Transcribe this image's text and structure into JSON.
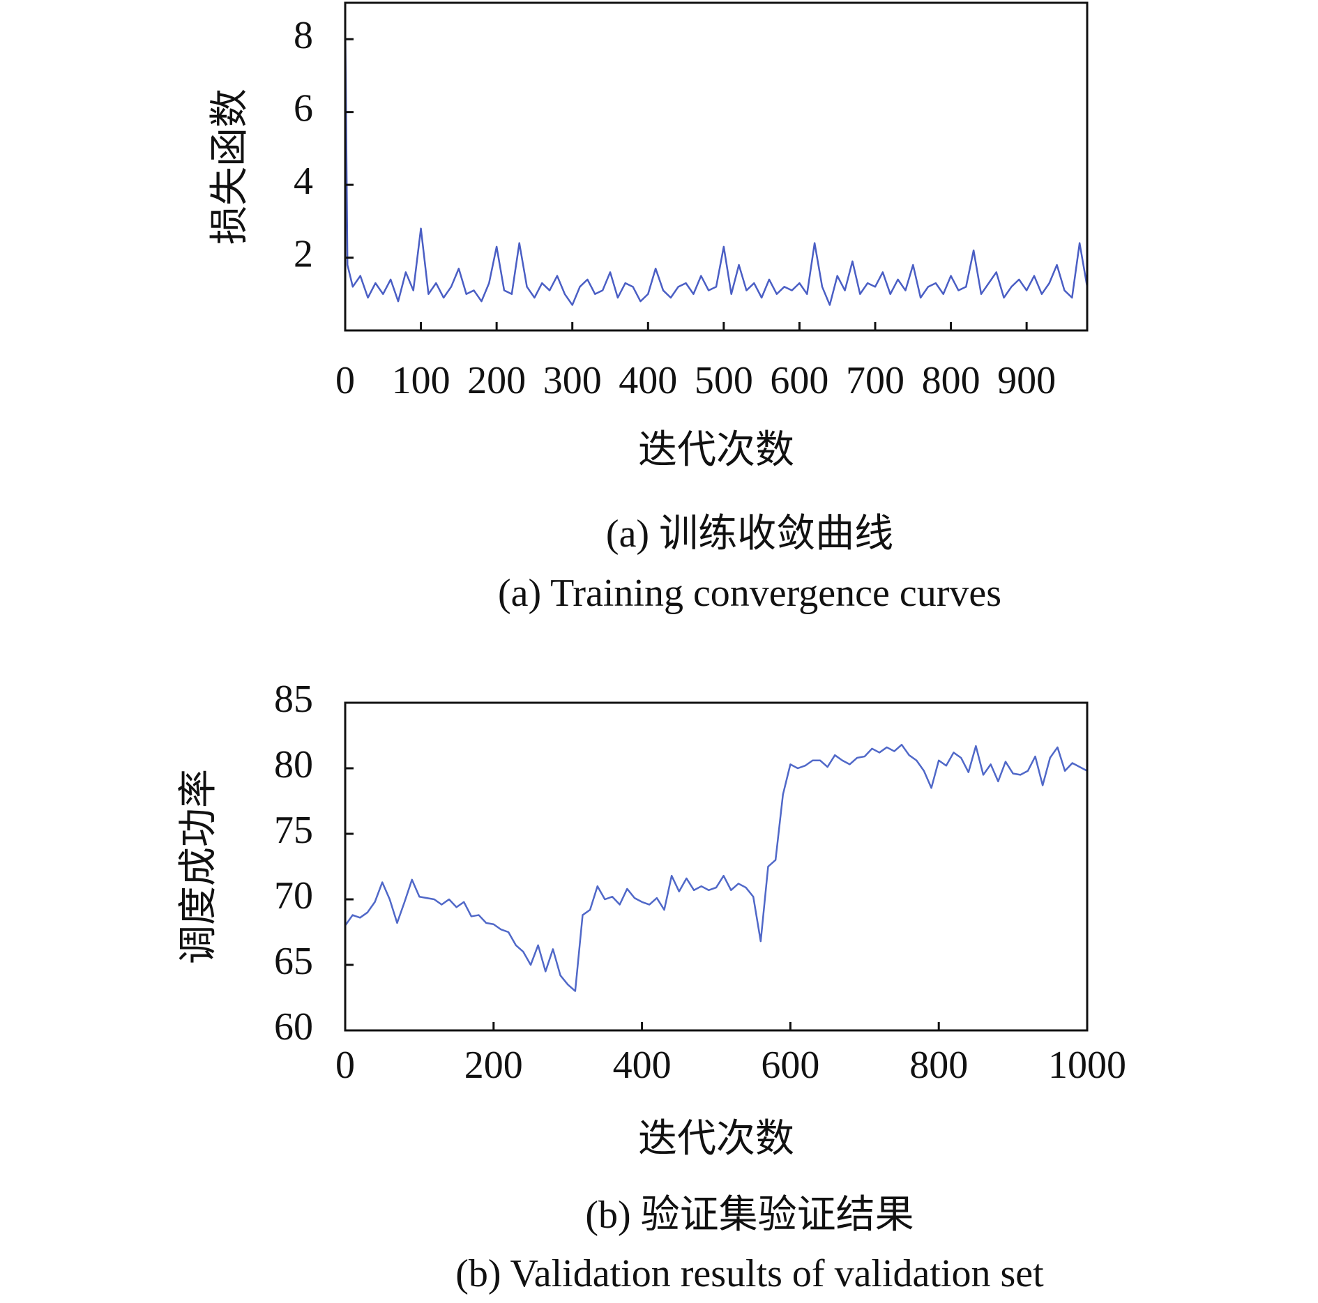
{
  "chart_data": [
    {
      "type": "line",
      "title": "(a) 训练收敛曲线",
      "subtitle": "(a) Training convergence curves",
      "x_label": "迭代次数",
      "y_label": "损失函数",
      "xlim": [
        0,
        980
      ],
      "ylim": [
        0,
        9
      ],
      "xticks": [
        0,
        100,
        200,
        300,
        400,
        500,
        600,
        700,
        800,
        900
      ],
      "yticks": [
        2,
        4,
        6,
        8
      ],
      "color": "#4a5ec4",
      "x": [
        0,
        3,
        10,
        20,
        30,
        40,
        50,
        60,
        70,
        80,
        90,
        100,
        110,
        120,
        130,
        140,
        150,
        160,
        170,
        180,
        190,
        200,
        210,
        220,
        230,
        240,
        250,
        260,
        270,
        280,
        290,
        300,
        310,
        320,
        330,
        340,
        350,
        360,
        370,
        380,
        390,
        400,
        410,
        420,
        430,
        440,
        450,
        460,
        470,
        480,
        490,
        500,
        510,
        520,
        530,
        540,
        550,
        560,
        570,
        580,
        590,
        600,
        610,
        620,
        630,
        640,
        650,
        660,
        670,
        680,
        690,
        700,
        710,
        720,
        730,
        740,
        750,
        760,
        770,
        780,
        790,
        800,
        810,
        820,
        830,
        840,
        850,
        860,
        870,
        880,
        890,
        900,
        910,
        920,
        930,
        940,
        950,
        960,
        970,
        980
      ],
      "values": [
        8.6,
        1.8,
        1.2,
        1.5,
        0.9,
        1.3,
        1.0,
        1.4,
        0.8,
        1.6,
        1.1,
        2.8,
        1.0,
        1.3,
        0.9,
        1.2,
        1.7,
        1.0,
        1.1,
        0.8,
        1.3,
        2.3,
        1.1,
        1.0,
        2.4,
        1.2,
        0.9,
        1.3,
        1.1,
        1.5,
        1.0,
        0.7,
        1.2,
        1.4,
        1.0,
        1.1,
        1.6,
        0.9,
        1.3,
        1.2,
        0.8,
        1.0,
        1.7,
        1.1,
        0.9,
        1.2,
        1.3,
        1.0,
        1.5,
        1.1,
        1.2,
        2.3,
        1.0,
        1.8,
        1.1,
        1.3,
        0.9,
        1.4,
        1.0,
        1.2,
        1.1,
        1.3,
        1.0,
        2.4,
        1.2,
        0.7,
        1.5,
        1.1,
        1.9,
        1.0,
        1.3,
        1.2,
        1.6,
        1.0,
        1.4,
        1.1,
        1.8,
        0.9,
        1.2,
        1.3,
        1.0,
        1.5,
        1.1,
        1.2,
        2.2,
        1.0,
        1.3,
        1.6,
        0.9,
        1.2,
        1.4,
        1.1,
        1.5,
        1.0,
        1.3,
        1.8,
        1.1,
        0.9,
        2.4,
        1.2
      ]
    },
    {
      "type": "line",
      "title": "(b) 验证集验证结果",
      "subtitle": "(b) Validation results of validation set",
      "x_label": "迭代次数",
      "y_label": "调度成功率",
      "xlim": [
        0,
        1000
      ],
      "ylim": [
        60,
        85
      ],
      "xticks": [
        0,
        200,
        400,
        600,
        800,
        1000
      ],
      "yticks": [
        60,
        65,
        70,
        75,
        80,
        85
      ],
      "color": "#5068c8",
      "x": [
        0,
        10,
        20,
        30,
        40,
        50,
        60,
        70,
        80,
        90,
        100,
        110,
        120,
        130,
        140,
        150,
        160,
        170,
        180,
        190,
        200,
        210,
        220,
        230,
        240,
        250,
        260,
        270,
        280,
        290,
        300,
        310,
        320,
        330,
        340,
        350,
        360,
        370,
        380,
        390,
        400,
        410,
        420,
        430,
        440,
        450,
        460,
        470,
        480,
        490,
        500,
        510,
        520,
        530,
        540,
        550,
        560,
        570,
        580,
        590,
        600,
        610,
        620,
        630,
        640,
        650,
        660,
        670,
        680,
        690,
        700,
        710,
        720,
        730,
        740,
        750,
        760,
        770,
        780,
        790,
        800,
        810,
        820,
        830,
        840,
        850,
        860,
        870,
        880,
        890,
        900,
        910,
        920,
        930,
        940,
        950,
        960,
        970,
        980,
        990,
        1000
      ],
      "values": [
        68,
        68.8,
        68.6,
        69,
        69.8,
        71.3,
        70,
        68.2,
        69.8,
        71.5,
        70.2,
        70.1,
        70,
        69.6,
        70,
        69.4,
        69.8,
        68.7,
        68.8,
        68.2,
        68.1,
        67.7,
        67.5,
        66.5,
        66,
        65,
        66.5,
        64.5,
        66.2,
        64.2,
        63.5,
        63,
        68.8,
        69.2,
        71,
        70,
        70.2,
        69.6,
        70.8,
        70.1,
        69.8,
        69.6,
        70.1,
        69.2,
        71.8,
        70.6,
        71.6,
        70.7,
        71,
        70.7,
        70.9,
        71.8,
        70.7,
        71.2,
        70.9,
        70.2,
        66.8,
        72.5,
        73,
        78,
        80.3,
        80,
        80.2,
        80.6,
        80.6,
        80.1,
        81,
        80.6,
        80.3,
        80.8,
        80.9,
        81.5,
        81.2,
        81.6,
        81.3,
        81.8,
        81,
        80.6,
        79.8,
        78.5,
        80.6,
        80.2,
        81.2,
        80.8,
        79.7,
        81.7,
        79.5,
        80.3,
        79,
        80.5,
        79.6,
        79.5,
        79.8,
        80.9,
        78.7,
        80.8,
        81.6,
        79.8,
        80.4,
        80.1,
        79.8
      ]
    }
  ]
}
